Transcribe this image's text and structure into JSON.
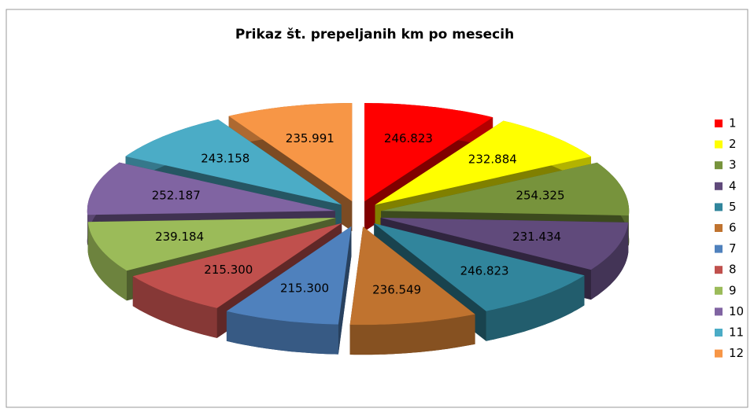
{
  "chart_data": {
    "type": "pie",
    "title": "Prikaz št. prepeljanih km po mesecih",
    "categories": [
      "1",
      "2",
      "3",
      "4",
      "5",
      "6",
      "7",
      "8",
      "9",
      "10",
      "11",
      "12"
    ],
    "values": [
      246823,
      232884,
      254325,
      231434,
      246823,
      236549,
      215300,
      215300,
      239184,
      252187,
      243158,
      235991
    ],
    "value_labels": [
      "246.823",
      "232.884",
      "254.325",
      "231.434",
      "246.823",
      "236.549",
      "215.300",
      "215.300",
      "239.184",
      "252.187",
      "243.158",
      "235.991"
    ],
    "colors": [
      "#ff0000",
      "#ffff00",
      "#77933c",
      "#604a7b",
      "#31859c",
      "#c0732f",
      "#4f81bd",
      "#c0504d",
      "#9bbb59",
      "#8064a2",
      "#4bacc6",
      "#f79646"
    ],
    "legend": "right"
  }
}
